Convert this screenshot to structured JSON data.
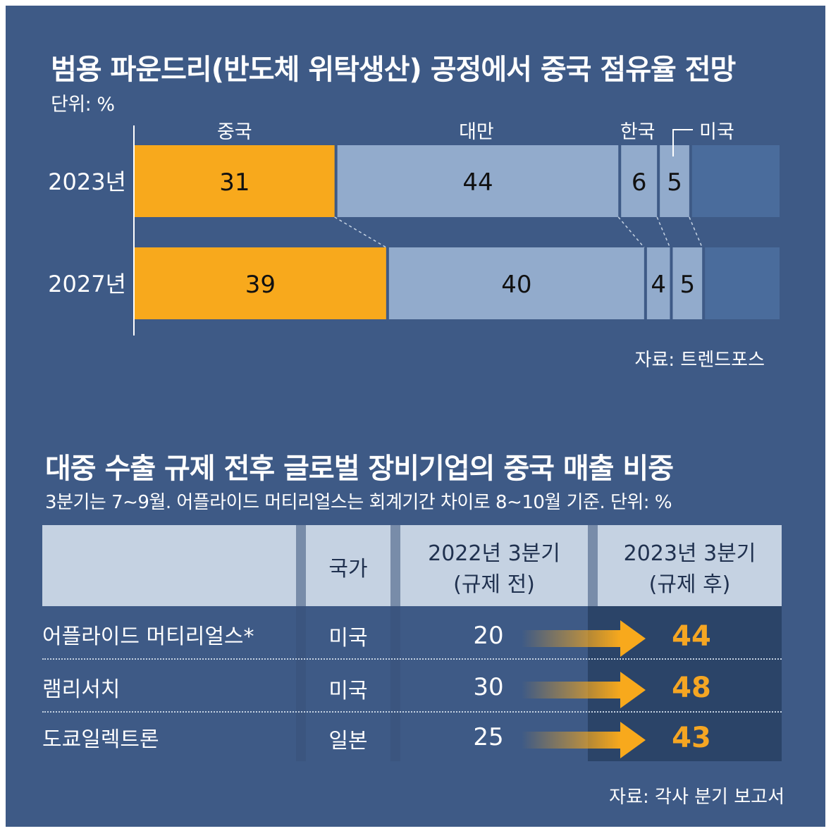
{
  "chart1": {
    "title": "범용 파운드리(반도체 위탁생산) 공정에서 중국 점유율 전망",
    "unit": "단위: %",
    "source": "자료: 트렌드포스",
    "country_labels": [
      "중국",
      "대만",
      "한국",
      "미국"
    ]
  },
  "chart2": {
    "title": "대중 수출 규제 전후 글로벌 장비기업의 중국 매출 비중",
    "note": "3분기는 7∼9월. 어플라이드 머티리얼스는 회계기간 차이로 8∼10월 기준. 단위: %",
    "headers": {
      "country": "국가",
      "before_line1": "2022년 3분기",
      "before_line2": "(규제 전)",
      "after_line1": "2023년 3분기",
      "after_line2": "(규제 후)"
    },
    "rows": [
      {
        "company": "어플라이드 머티리얼스*",
        "country": "미국",
        "before": "20",
        "after": "44"
      },
      {
        "company": "램리서치",
        "country": "미국",
        "before": "30",
        "after": "48"
      },
      {
        "company": "도쿄일렉트론",
        "country": "일본",
        "before": "25",
        "after": "43"
      }
    ],
    "source": "자료: 각사 분기 보고서"
  },
  "chart_data": [
    {
      "type": "bar",
      "stacked": true,
      "orientation": "horizontal",
      "title": "범용 파운드리(반도체 위탁생산) 공정에서 중국 점유율 전망",
      "unit": "%",
      "categories": [
        "2023년",
        "2027년"
      ],
      "series": [
        {
          "name": "중국",
          "values": [
            31,
            39
          ],
          "color": "#f8a91c"
        },
        {
          "name": "대만",
          "values": [
            44,
            40
          ],
          "color": "#92abcc"
        },
        {
          "name": "한국",
          "values": [
            6,
            4
          ],
          "color": "#92abcc"
        },
        {
          "name": "미국",
          "values": [
            5,
            5
          ],
          "color": "#92abcc"
        },
        {
          "name": "",
          "values": [
            14,
            12
          ],
          "color": "#4a6c9c"
        }
      ],
      "xlim": [
        0,
        100
      ]
    },
    {
      "type": "table",
      "title": "대중 수출 규제 전후 글로벌 장비기업의 중국 매출 비중",
      "columns": [
        "",
        "국가",
        "2022년 3분기 (규제 전)",
        "2023년 3분기 (규제 후)"
      ],
      "rows": [
        [
          "어플라이드 머티리얼스*",
          "미국",
          20,
          44
        ],
        [
          "램리서치",
          "미국",
          30,
          48
        ],
        [
          "도쿄일렉트론",
          "일본",
          25,
          43
        ]
      ]
    }
  ]
}
